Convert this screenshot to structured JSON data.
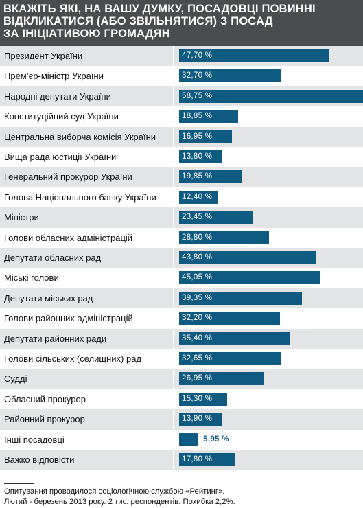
{
  "header": {
    "title_lines": [
      "ВКАЖІТЬ ЯКІ, НА ВАШУ ДУМКУ, ПОСАДОВЦІ ПОВИННІ",
      "ВІДКЛИКАТИСЯ (АБО ЗВІЛЬНЯТИСЯ) З ПОСАД",
      "ЗА ІНІЦІАТИВОЮ ГРОМАДЯН"
    ]
  },
  "chart_data": {
    "type": "bar",
    "orientation": "horizontal",
    "title": "ВКАЖІТЬ ЯКІ, НА ВАШУ ДУМКУ, ПОСАДОВЦІ ПОВИННІ ВІДКЛИКАТИСЯ (АБО ЗВІЛЬНЯТИСЯ) З ПОСАД ЗА ІНІЦІАТИВОЮ ГРОМАДЯН",
    "unit": "%",
    "bar_color": "#0e5a80",
    "categories": [
      "Президент України",
      "Прем’єр-міністр України",
      "Народні депутати України",
      "Конституційний суд України",
      "Центральна виборча комісія України",
      "Вища рада юстиції України",
      "Генеральний прокурор України",
      "Голова Національного банку України",
      "Міністри",
      "Голови обласних адміністрацій",
      "Депутати обласних рад",
      "Міські голови",
      "Депутати міських рад",
      "Голови районних адміністрацій",
      "Депутати районних ради",
      "Голови сільських (селищних) рад",
      "Судді",
      "Обласний прокурор",
      "Районний прокурор",
      "Інші посадовці",
      "Важко відповісти"
    ],
    "values": [
      47.7,
      32.7,
      58.75,
      18.85,
      16.95,
      13.8,
      19.85,
      12.4,
      23.45,
      28.8,
      43.8,
      45.05,
      39.35,
      32.2,
      35.4,
      32.65,
      26.95,
      15.3,
      13.9,
      5.95,
      17.8
    ],
    "value_labels": [
      "47,70 %",
      "32,70 %",
      "58,75 %",
      "18,85 %",
      "16,95 %",
      "13,80 %",
      "19,85 %",
      "12,40 %",
      "23,45 %",
      "28,80 %",
      "43,80 %",
      "45,05 %",
      "39,35 %",
      "32,20 %",
      "35,40 %",
      "32,65 %",
      "26,95 %",
      "15,30 %",
      "13,90 %",
      "5,95 %",
      "17,80 %"
    ]
  },
  "footnote": {
    "lines": [
      "Опитування проводилося соціологічною службою «Рейтинг».",
      "Лютий - березень 2013 року. 2 тис. респондентів. Похибка 2,2%."
    ]
  }
}
